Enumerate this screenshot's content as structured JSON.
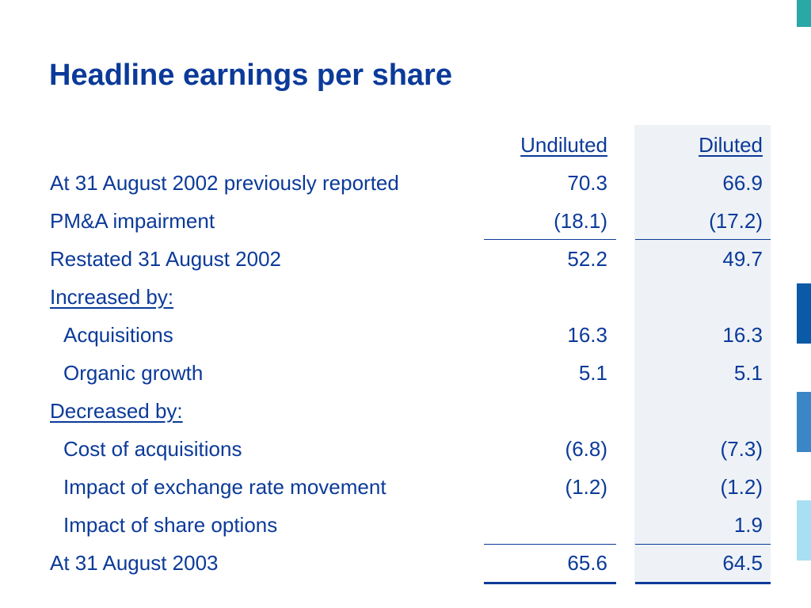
{
  "title": "Headline earnings per share",
  "colors": {
    "text": "#0b3a99",
    "diluted_bg": "#eef2f6",
    "accent_teal": "#2aa7a7",
    "accent_blue": "#0b5aa8",
    "accent_mid": "#3a86c6",
    "accent_light": "#a9dff3"
  },
  "columns": {
    "undiluted": "Undiluted",
    "diluted": "Diluted"
  },
  "rows": [
    {
      "label": "At 31 August 2002 previously reported",
      "undiluted": "70.3",
      "diluted": "66.9"
    },
    {
      "label": "PM&A impairment",
      "undiluted": "(18.1)",
      "diluted": "(17.2)"
    },
    {
      "label": "Restated 31 August 2002",
      "undiluted": "52.2",
      "diluted": "49.7"
    },
    {
      "label": "Increased by:",
      "undiluted": "",
      "diluted": ""
    },
    {
      "label": "Acquisitions",
      "undiluted": "16.3",
      "diluted": "16.3"
    },
    {
      "label": "Organic growth",
      "undiluted": "5.1",
      "diluted": "5.1"
    },
    {
      "label": "Decreased by:",
      "undiluted": "",
      "diluted": ""
    },
    {
      "label": "Cost of acquisitions",
      "undiluted": "(6.8)",
      "diluted": "(7.3)"
    },
    {
      "label": "Impact of exchange rate movement",
      "undiluted": "(1.2)",
      "diluted": "(1.2)"
    },
    {
      "label": "Impact of share options",
      "undiluted": "",
      "diluted": "1.9"
    },
    {
      "label": "At 31 August 2003",
      "undiluted": "65.6",
      "diluted": "64.5"
    }
  ]
}
